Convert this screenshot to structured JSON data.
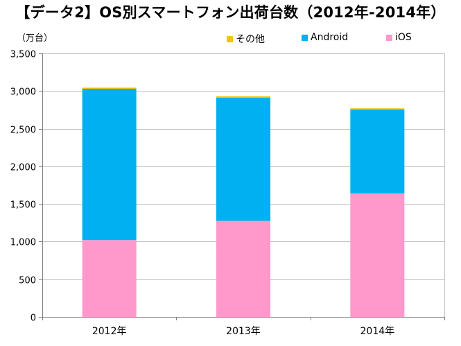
{
  "title": "【データ2】OS別スマートフォン出荷台数（2012年-2014年）",
  "unit_label": "（万台）",
  "colors": {
    "other": "#f5c400",
    "android": "#00b0f0",
    "ios": "#ff99cc",
    "grid": "#c0c0c0",
    "axis": "#808080"
  },
  "legend": [
    {
      "key": "other",
      "label": "その他"
    },
    {
      "key": "android",
      "label": "Android"
    },
    {
      "key": "ios",
      "label": "iOS"
    }
  ],
  "chart_data": {
    "type": "bar",
    "stacked": true,
    "title": "【データ2】OS別スマートフォン出荷台数（2012年-2014年）",
    "ylabel": "（万台）",
    "xlabel": "",
    "categories": [
      "2012年",
      "2013年",
      "2014年"
    ],
    "series": [
      {
        "name": "iOS",
        "color_key": "ios",
        "values": [
          1020,
          1275,
          1640
        ]
      },
      {
        "name": "Android",
        "color_key": "android",
        "values": [
          2010,
          1635,
          1115
        ]
      },
      {
        "name": "その他",
        "color_key": "other",
        "values": [
          15,
          20,
          15
        ]
      }
    ],
    "ylim": [
      0,
      3500
    ],
    "yticks": [
      0,
      500,
      1000,
      1500,
      2000,
      2500,
      3000,
      3500
    ],
    "ytick_labels": [
      "0",
      "500",
      "1,000",
      "1,500",
      "2,000",
      "2,500",
      "3,000",
      "3,500"
    ],
    "grid": true,
    "legend_position": "top"
  }
}
